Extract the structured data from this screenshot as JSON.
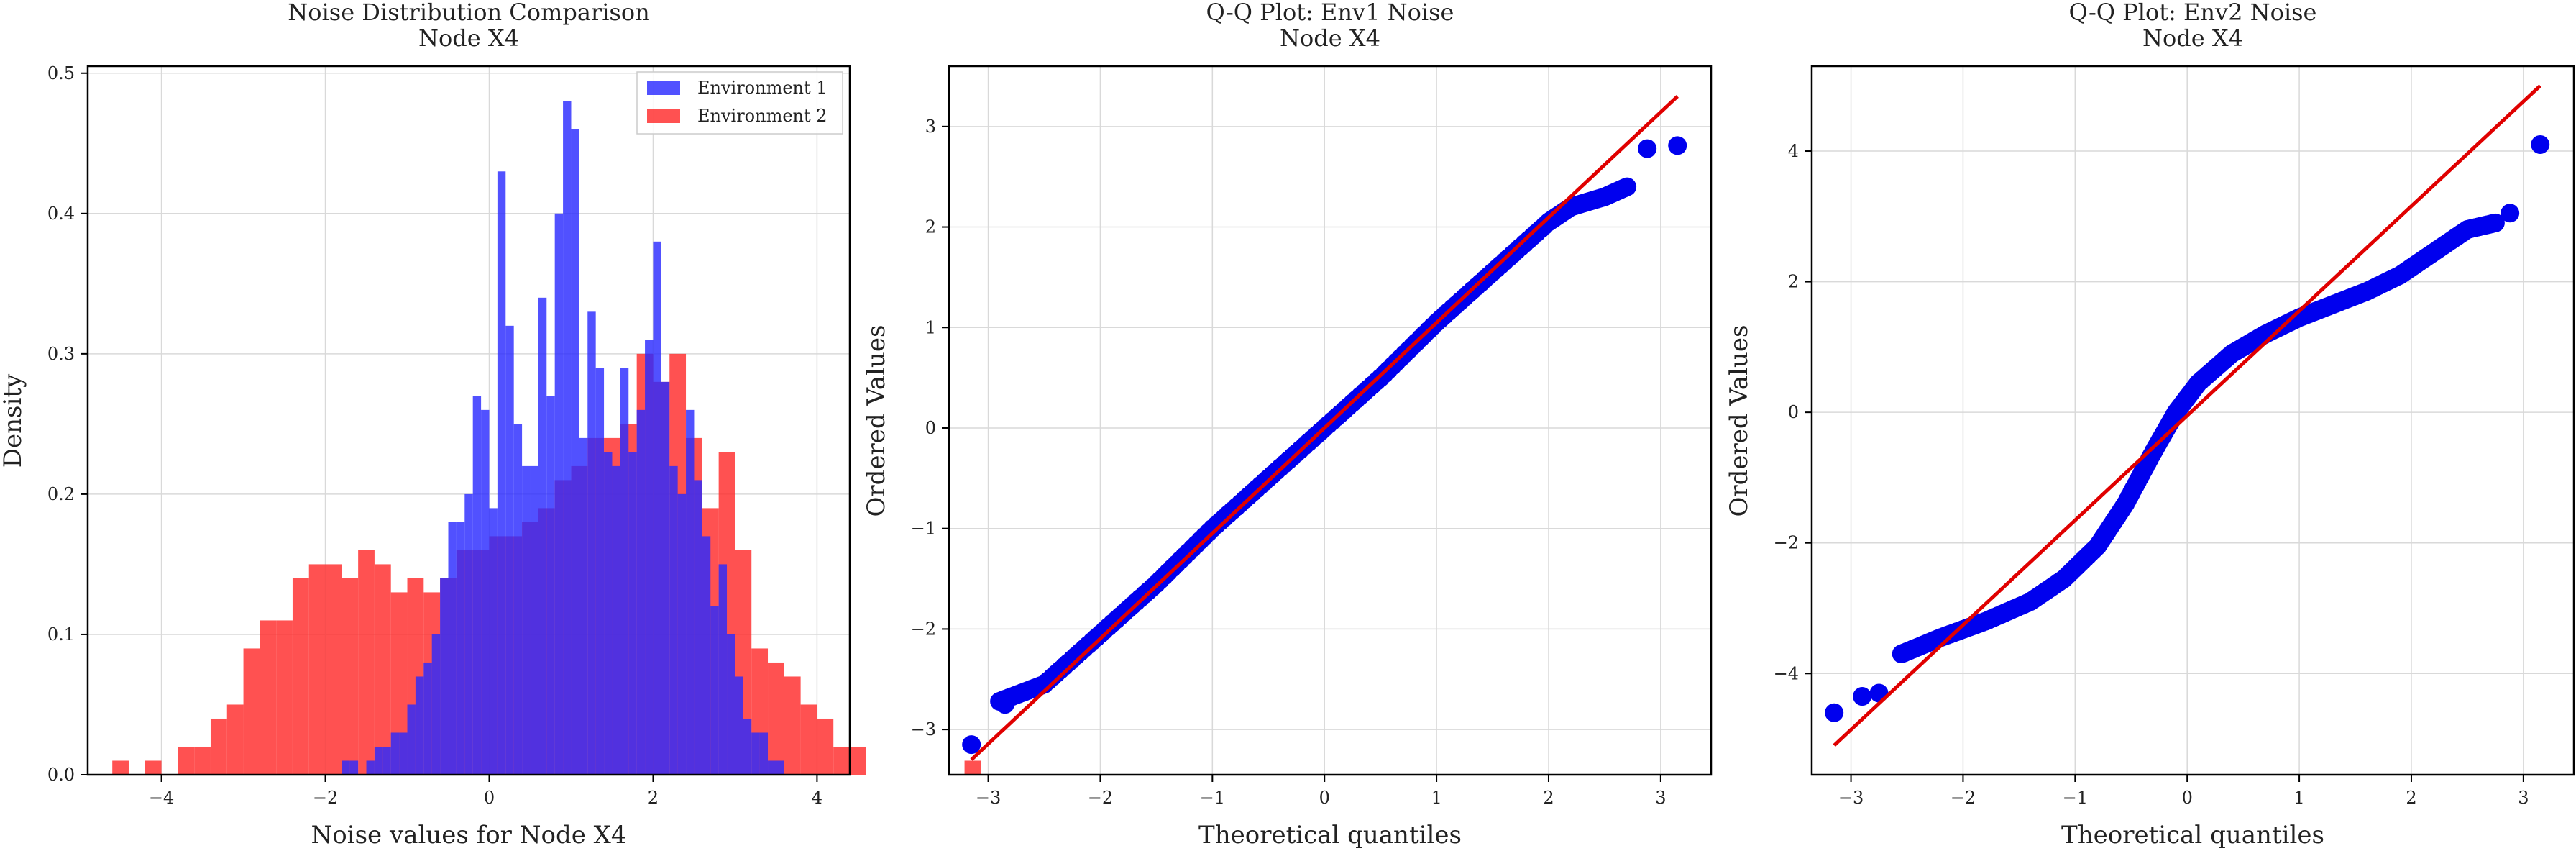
{
  "chart_data": [
    {
      "type": "bar",
      "title": "Noise Distribution Comparison",
      "subtitle": "Node X4",
      "xlabel": "Noise values for Node X4",
      "ylabel": "Density",
      "xlim": [
        -4.9,
        4.4
      ],
      "ylim": [
        0,
        0.505
      ],
      "xticks": [
        -4,
        -2,
        0,
        2,
        4
      ],
      "yticks": [
        0.0,
        0.1,
        0.2,
        0.3,
        0.4,
        0.5
      ],
      "grid": true,
      "legend_position": "top-right",
      "series": [
        {
          "name": "Environment 1",
          "color": "#2b2bff",
          "opacity": 0.82,
          "bin_start": -2.0,
          "bin_width": 0.1,
          "values": [
            0.0,
            0.0,
            0.01,
            0.01,
            0.0,
            0.01,
            0.02,
            0.02,
            0.03,
            0.03,
            0.05,
            0.07,
            0.08,
            0.1,
            0.14,
            0.18,
            0.18,
            0.2,
            0.27,
            0.26,
            0.19,
            0.43,
            0.32,
            0.25,
            0.22,
            0.22,
            0.34,
            0.27,
            0.4,
            0.48,
            0.46,
            0.24,
            0.33,
            0.29,
            0.23,
            0.22,
            0.29,
            0.23,
            0.26,
            0.31,
            0.38,
            0.28,
            0.22,
            0.2,
            0.26,
            0.21,
            0.17,
            0.12,
            0.15,
            0.1,
            0.07,
            0.04,
            0.03,
            0.03,
            0.01,
            0.01
          ]
        },
        {
          "name": "Environment 2",
          "color": "#ff2b2b",
          "opacity": 0.82,
          "bin_start": -4.6,
          "bin_width": 0.2,
          "values": [
            0.01,
            0.0,
            0.01,
            0.0,
            0.02,
            0.02,
            0.04,
            0.05,
            0.09,
            0.11,
            0.11,
            0.14,
            0.15,
            0.15,
            0.14,
            0.16,
            0.15,
            0.13,
            0.14,
            0.13,
            0.14,
            0.16,
            0.16,
            0.17,
            0.17,
            0.18,
            0.19,
            0.21,
            0.22,
            0.24,
            0.24,
            0.25,
            0.3,
            0.28,
            0.3,
            0.24,
            0.19,
            0.23,
            0.16,
            0.09,
            0.08,
            0.07,
            0.05,
            0.04,
            0.02,
            0.02,
            0.0,
            0.0,
            0.0,
            0.0,
            0.0,
            0.0,
            0.01
          ]
        }
      ]
    },
    {
      "type": "scatter",
      "title": "Q-Q Plot: Env1 Noise",
      "subtitle": "Node X4",
      "xlabel": "Theoretical quantiles",
      "ylabel": "Ordered Values",
      "xlim": [
        -3.35,
        3.45
      ],
      "ylim": [
        -3.45,
        3.6
      ],
      "xticks": [
        -3,
        -2,
        -1,
        0,
        1,
        2,
        3
      ],
      "yticks": [
        -3,
        -2,
        -1,
        0,
        1,
        2,
        3
      ],
      "grid": true,
      "points_color": "#0000ee",
      "line_color": "#e00000",
      "fit_line": {
        "x": [
          -3.15,
          3.15
        ],
        "y": [
          -3.3,
          3.3
        ]
      },
      "curve": {
        "x": [
          -2.9,
          -2.5,
          -2.0,
          -1.5,
          -1.0,
          -0.5,
          0.0,
          0.5,
          1.0,
          1.5,
          2.0,
          2.2,
          2.5,
          2.7
        ],
        "y": [
          -2.72,
          -2.55,
          -2.05,
          -1.55,
          -1.0,
          -0.5,
          0.0,
          0.5,
          1.05,
          1.55,
          2.05,
          2.2,
          2.3,
          2.4
        ]
      },
      "outliers": {
        "x": [
          -3.15,
          -2.85,
          2.88,
          3.15
        ],
        "y": [
          -3.15,
          -2.75,
          2.78,
          2.81
        ]
      }
    },
    {
      "type": "scatter",
      "title": "Q-Q Plot: Env2 Noise",
      "subtitle": "Node X4",
      "xlabel": "Theoretical quantiles",
      "ylabel": "Ordered Values",
      "xlim": [
        -3.35,
        3.45
      ],
      "ylim": [
        -5.55,
        5.3
      ],
      "xticks": [
        -3,
        -2,
        -1,
        0,
        1,
        2,
        3
      ],
      "yticks": [
        -4,
        -2,
        0,
        2,
        4
      ],
      "grid": true,
      "points_color": "#0000ee",
      "line_color": "#e00000",
      "fit_line": {
        "x": [
          -3.15,
          3.15
        ],
        "y": [
          -5.1,
          5.0
        ]
      },
      "curve": {
        "x": [
          -2.55,
          -2.2,
          -1.8,
          -1.4,
          -1.1,
          -0.8,
          -0.55,
          -0.3,
          -0.1,
          0.1,
          0.4,
          0.7,
          1.0,
          1.3,
          1.6,
          1.9,
          2.2,
          2.5,
          2.75
        ],
        "y": [
          -3.7,
          -3.45,
          -3.2,
          -2.9,
          -2.55,
          -2.05,
          -1.4,
          -0.6,
          0.0,
          0.45,
          0.9,
          1.2,
          1.45,
          1.65,
          1.85,
          2.1,
          2.45,
          2.8,
          2.9
        ]
      },
      "outliers": {
        "x": [
          -3.15,
          -2.9,
          -2.75,
          2.88,
          3.15
        ],
        "y": [
          -4.6,
          -4.35,
          -4.3,
          3.05,
          4.1
        ]
      }
    }
  ]
}
